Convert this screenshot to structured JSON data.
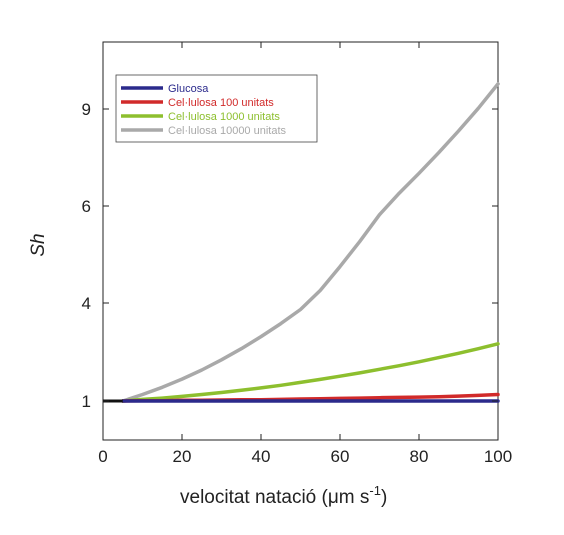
{
  "chart_data": {
    "type": "line",
    "xlabel": "velocitat natació (μm s",
    "xlabel_sup": "-1",
    "xlabel_end": ")",
    "ylabel": "Sh",
    "xlim": [
      0,
      100
    ],
    "ylim": [
      0.25,
      11
    ],
    "x_ticks": [
      0,
      20,
      40,
      60,
      80,
      100
    ],
    "y_ticks": [
      1,
      4,
      6,
      9
    ],
    "x": [
      5,
      10,
      15,
      20,
      25,
      30,
      35,
      40,
      45,
      50,
      55,
      60,
      65,
      70,
      75,
      80,
      85,
      90,
      95,
      100
    ],
    "series": [
      {
        "name": "Glucosa",
        "color": "#2b2a8c",
        "values": [
          1.0,
          1.0,
          1.0,
          1.0,
          1.0,
          1.0,
          1.0,
          1.0,
          1.0,
          1.0,
          1.0,
          1.0,
          1.0,
          1.0,
          1.0,
          1.0,
          1.0,
          1.0,
          1.0,
          1.0
        ]
      },
      {
        "name": "Cel·lulosa 100 unitats",
        "color": "#d12a2a",
        "values": [
          1.0,
          1.01,
          1.01,
          1.02,
          1.02,
          1.03,
          1.04,
          1.04,
          1.05,
          1.06,
          1.07,
          1.08,
          1.09,
          1.1,
          1.11,
          1.12,
          1.13,
          1.15,
          1.17,
          1.2
        ]
      },
      {
        "name": "Cel·lulosa 1000 unitats",
        "color": "#8dbf2e",
        "values": [
          1.0,
          1.05,
          1.09,
          1.14,
          1.2,
          1.26,
          1.33,
          1.4,
          1.48,
          1.57,
          1.66,
          1.76,
          1.86,
          1.97,
          2.08,
          2.2,
          2.33,
          2.46,
          2.6,
          2.75
        ]
      },
      {
        "name": "Cel·lulosa 10000 unitats",
        "color": "#a9a9a9",
        "values": [
          1.0,
          1.2,
          1.42,
          1.67,
          1.95,
          2.26,
          2.6,
          2.97,
          3.37,
          3.8,
          4.26,
          4.75,
          5.27,
          5.82,
          6.4,
          7.01,
          7.65,
          8.32,
          9.02,
          9.75
        ]
      }
    ],
    "legend_position": "top-left",
    "grid": false
  }
}
